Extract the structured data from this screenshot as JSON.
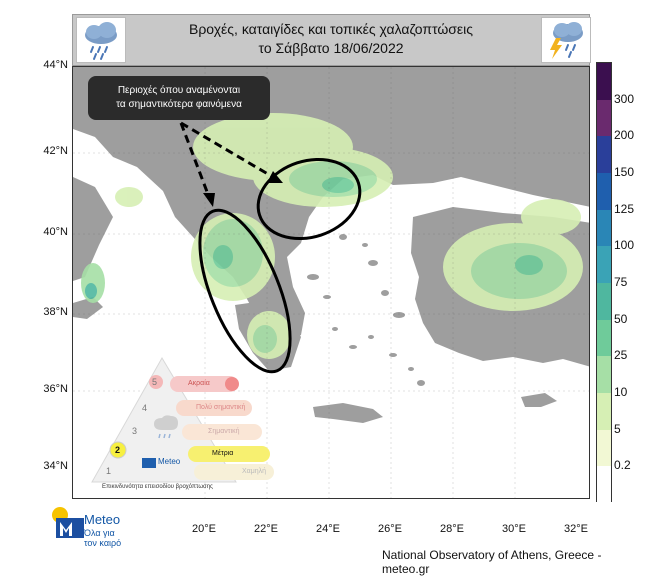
{
  "header": {
    "title_line1": "Βροχές, καταιγίδες και τοπικές χαλαζοπτώσεις",
    "title_line2": "το Σάββατο 18/06/2022",
    "left_icon": "rain-cloud-icon",
    "right_icon": "thunderstorm-cloud-icon"
  },
  "map": {
    "callout_line1": "Περιοχές όπου αναμένονται",
    "callout_line2": "τα σημαντικότερα φαινόμενα",
    "lat_labels": [
      "44°N",
      "42°N",
      "40°N",
      "38°N",
      "36°N",
      "34°N"
    ],
    "lon_labels": [
      "20°E",
      "22°E",
      "24°E",
      "26°E",
      "28°E",
      "30°E",
      "32°E"
    ]
  },
  "colorbar": {
    "labels": [
      "300",
      "200",
      "150",
      "125",
      "100",
      "75",
      "50",
      "25",
      "10",
      "5",
      "0.2"
    ],
    "colors": [
      "#3b0f4f",
      "#6a2a6e",
      "#2a3f9a",
      "#1f5fae",
      "#2a86b6",
      "#3aa3b6",
      "#4fb79f",
      "#6fcb9a",
      "#a6dfa6",
      "#d6efb4",
      "#f2f8d4",
      "#ffffff"
    ]
  },
  "legend_pyramid": {
    "levels": [
      {
        "num": "5",
        "label": "Ακραία"
      },
      {
        "num": "4",
        "label": "Πολύ σημαντική"
      },
      {
        "num": "3",
        "label": "Σημαντική"
      },
      {
        "num": "2",
        "label": "Μέτρια"
      },
      {
        "num": "1",
        "label": "Χαμηλή"
      }
    ],
    "brand": "Meteo",
    "caption": "Επικινδυνότητα επεισοδίου βροχόπτωσης"
  },
  "logo": {
    "name": "Meteo",
    "tagline_1": "Όλα για",
    "tagline_2": "τον καιρό"
  },
  "credit": "National Observatory of Athens, Greece - meteo.gr"
}
